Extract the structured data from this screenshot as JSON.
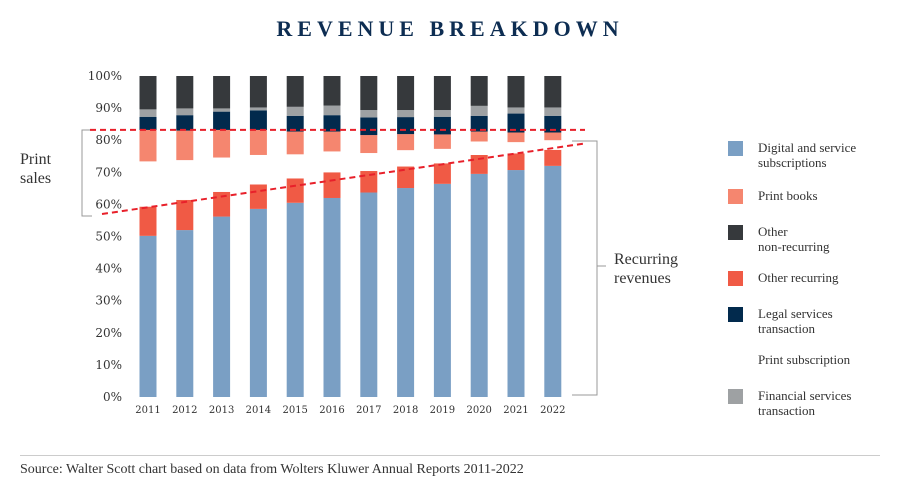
{
  "title": "REVENUE BREAKDOWN",
  "source": "Source: Walter Scott chart based on data from Wolters Kluwer Annual Reports 2011-2022",
  "annotations": {
    "print_sales": [
      "Print",
      "sales"
    ],
    "recurring": [
      "Recurring",
      "revenues"
    ]
  },
  "chart_data": {
    "type": "bar",
    "stacked": true,
    "title": "REVENUE BREAKDOWN",
    "xlabel": "",
    "ylabel": "",
    "ylim": [
      0,
      100
    ],
    "yticks": [
      "0%",
      "10%",
      "20%",
      "30%",
      "40%",
      "50%",
      "60%",
      "70%",
      "80%",
      "90%",
      "100%"
    ],
    "categories": [
      "2011",
      "2012",
      "2013",
      "2014",
      "2015",
      "2016",
      "2017",
      "2018",
      "2019",
      "2020",
      "2021",
      "2022"
    ],
    "series": [
      {
        "name": "Digital and service subscriptions",
        "color": "#7a9fc4",
        "values": [
          50.2,
          52.0,
          56.2,
          58.6,
          60.5,
          62.0,
          63.7,
          65.1,
          66.4,
          69.5,
          70.7,
          72.0
        ]
      },
      {
        "name": "Other recurring",
        "color": "#f05a45",
        "values": [
          9.1,
          9.4,
          7.7,
          7.6,
          7.6,
          8.0,
          6.7,
          6.7,
          6.4,
          5.9,
          5.2,
          5.0
        ]
      },
      {
        "name": "Print subscription",
        "color": "#ffffff",
        "values": [
          14.1,
          12.4,
          10.7,
          9.2,
          7.5,
          6.5,
          5.6,
          5.1,
          4.5,
          4.2,
          3.5,
          3.0
        ]
      },
      {
        "name": "Print books",
        "color": "#f5866f",
        "values": [
          9.8,
          9.2,
          8.6,
          7.8,
          7.1,
          6.2,
          5.6,
          5.0,
          4.5,
          3.1,
          3.0,
          2.4
        ]
      },
      {
        "name": "Legal services transaction",
        "color": "#022a4d",
        "values": [
          4.1,
          4.8,
          5.7,
          6.1,
          4.9,
          5.1,
          5.5,
          5.3,
          5.5,
          4.9,
          5.9,
          5.2
        ]
      },
      {
        "name": "Financial services transaction",
        "color": "#9ea1a3",
        "values": [
          2.3,
          2.1,
          1.0,
          0.9,
          2.8,
          3.0,
          2.3,
          2.2,
          2.1,
          3.1,
          1.9,
          2.6
        ]
      },
      {
        "name": "Other non-recurring",
        "color": "#36393c",
        "values": [
          10.4,
          10.1,
          10.1,
          9.8,
          9.6,
          9.2,
          10.6,
          10.6,
          10.6,
          9.3,
          9.8,
          9.8
        ]
      }
    ],
    "reference_lines": [
      {
        "type": "horizontal",
        "value": 83.2,
        "label": "Print sales boundary"
      },
      {
        "type": "trend",
        "from": [
          2011,
          57
        ],
        "to": [
          2022,
          79
        ],
        "label": "Recurring trend"
      }
    ],
    "legend": {
      "placement": "right",
      "items": [
        {
          "label": [
            "Digital and service",
            "subscriptions"
          ],
          "color": "#7a9fc4"
        },
        {
          "label": [
            "Print books"
          ],
          "color": "#f5866f"
        },
        {
          "label": [
            "Other",
            "non-recurring"
          ],
          "color": "#36393c"
        },
        {
          "label": [
            "Other recurring"
          ],
          "color": "#f05a45"
        },
        {
          "label": [
            "Legal services",
            "transaction"
          ],
          "color": "#022a4d"
        },
        {
          "label": [
            "Print subscription"
          ],
          "color": "#ffffff"
        },
        {
          "label": [
            "Financial services",
            "transaction"
          ],
          "color": "#9ea1a3"
        }
      ]
    }
  }
}
